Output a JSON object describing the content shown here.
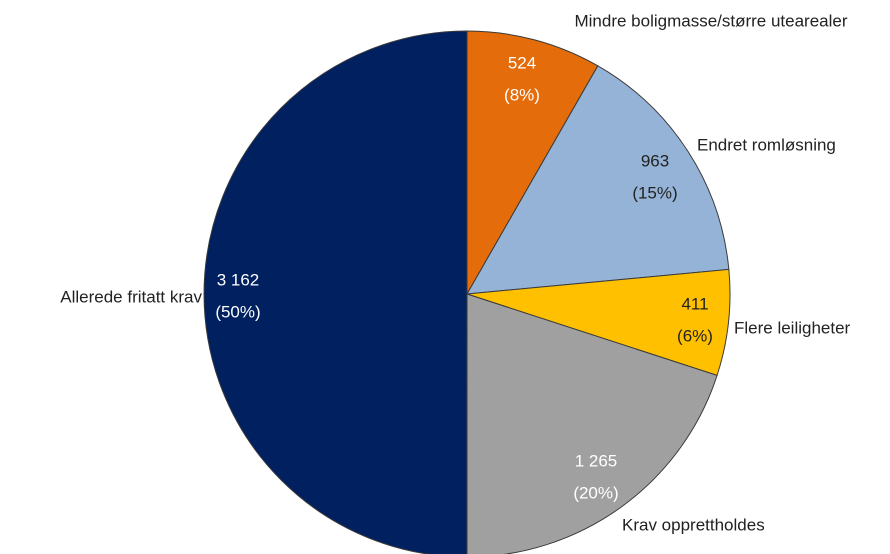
{
  "chart_data": {
    "type": "pie",
    "categories": [
      "Mindre boligmasse/større utearealer",
      "Endret romløsning",
      "Flere leiligheter",
      "Krav opprettholdes",
      "Allerede fritatt krav"
    ],
    "values": [
      524,
      963,
      411,
      1265,
      3162
    ],
    "value_labels": [
      "524",
      "963",
      "411",
      "1 265",
      "3 162"
    ],
    "percentages": [
      8,
      15,
      6,
      20,
      50
    ],
    "percentage_labels": [
      "(8%)",
      "(15%)",
      "(6%)",
      "(20%)",
      "(50%)"
    ],
    "colors": [
      "#e46c0a",
      "#95b3d7",
      "#ffc000",
      "#a0a0a0",
      "#002060"
    ]
  }
}
